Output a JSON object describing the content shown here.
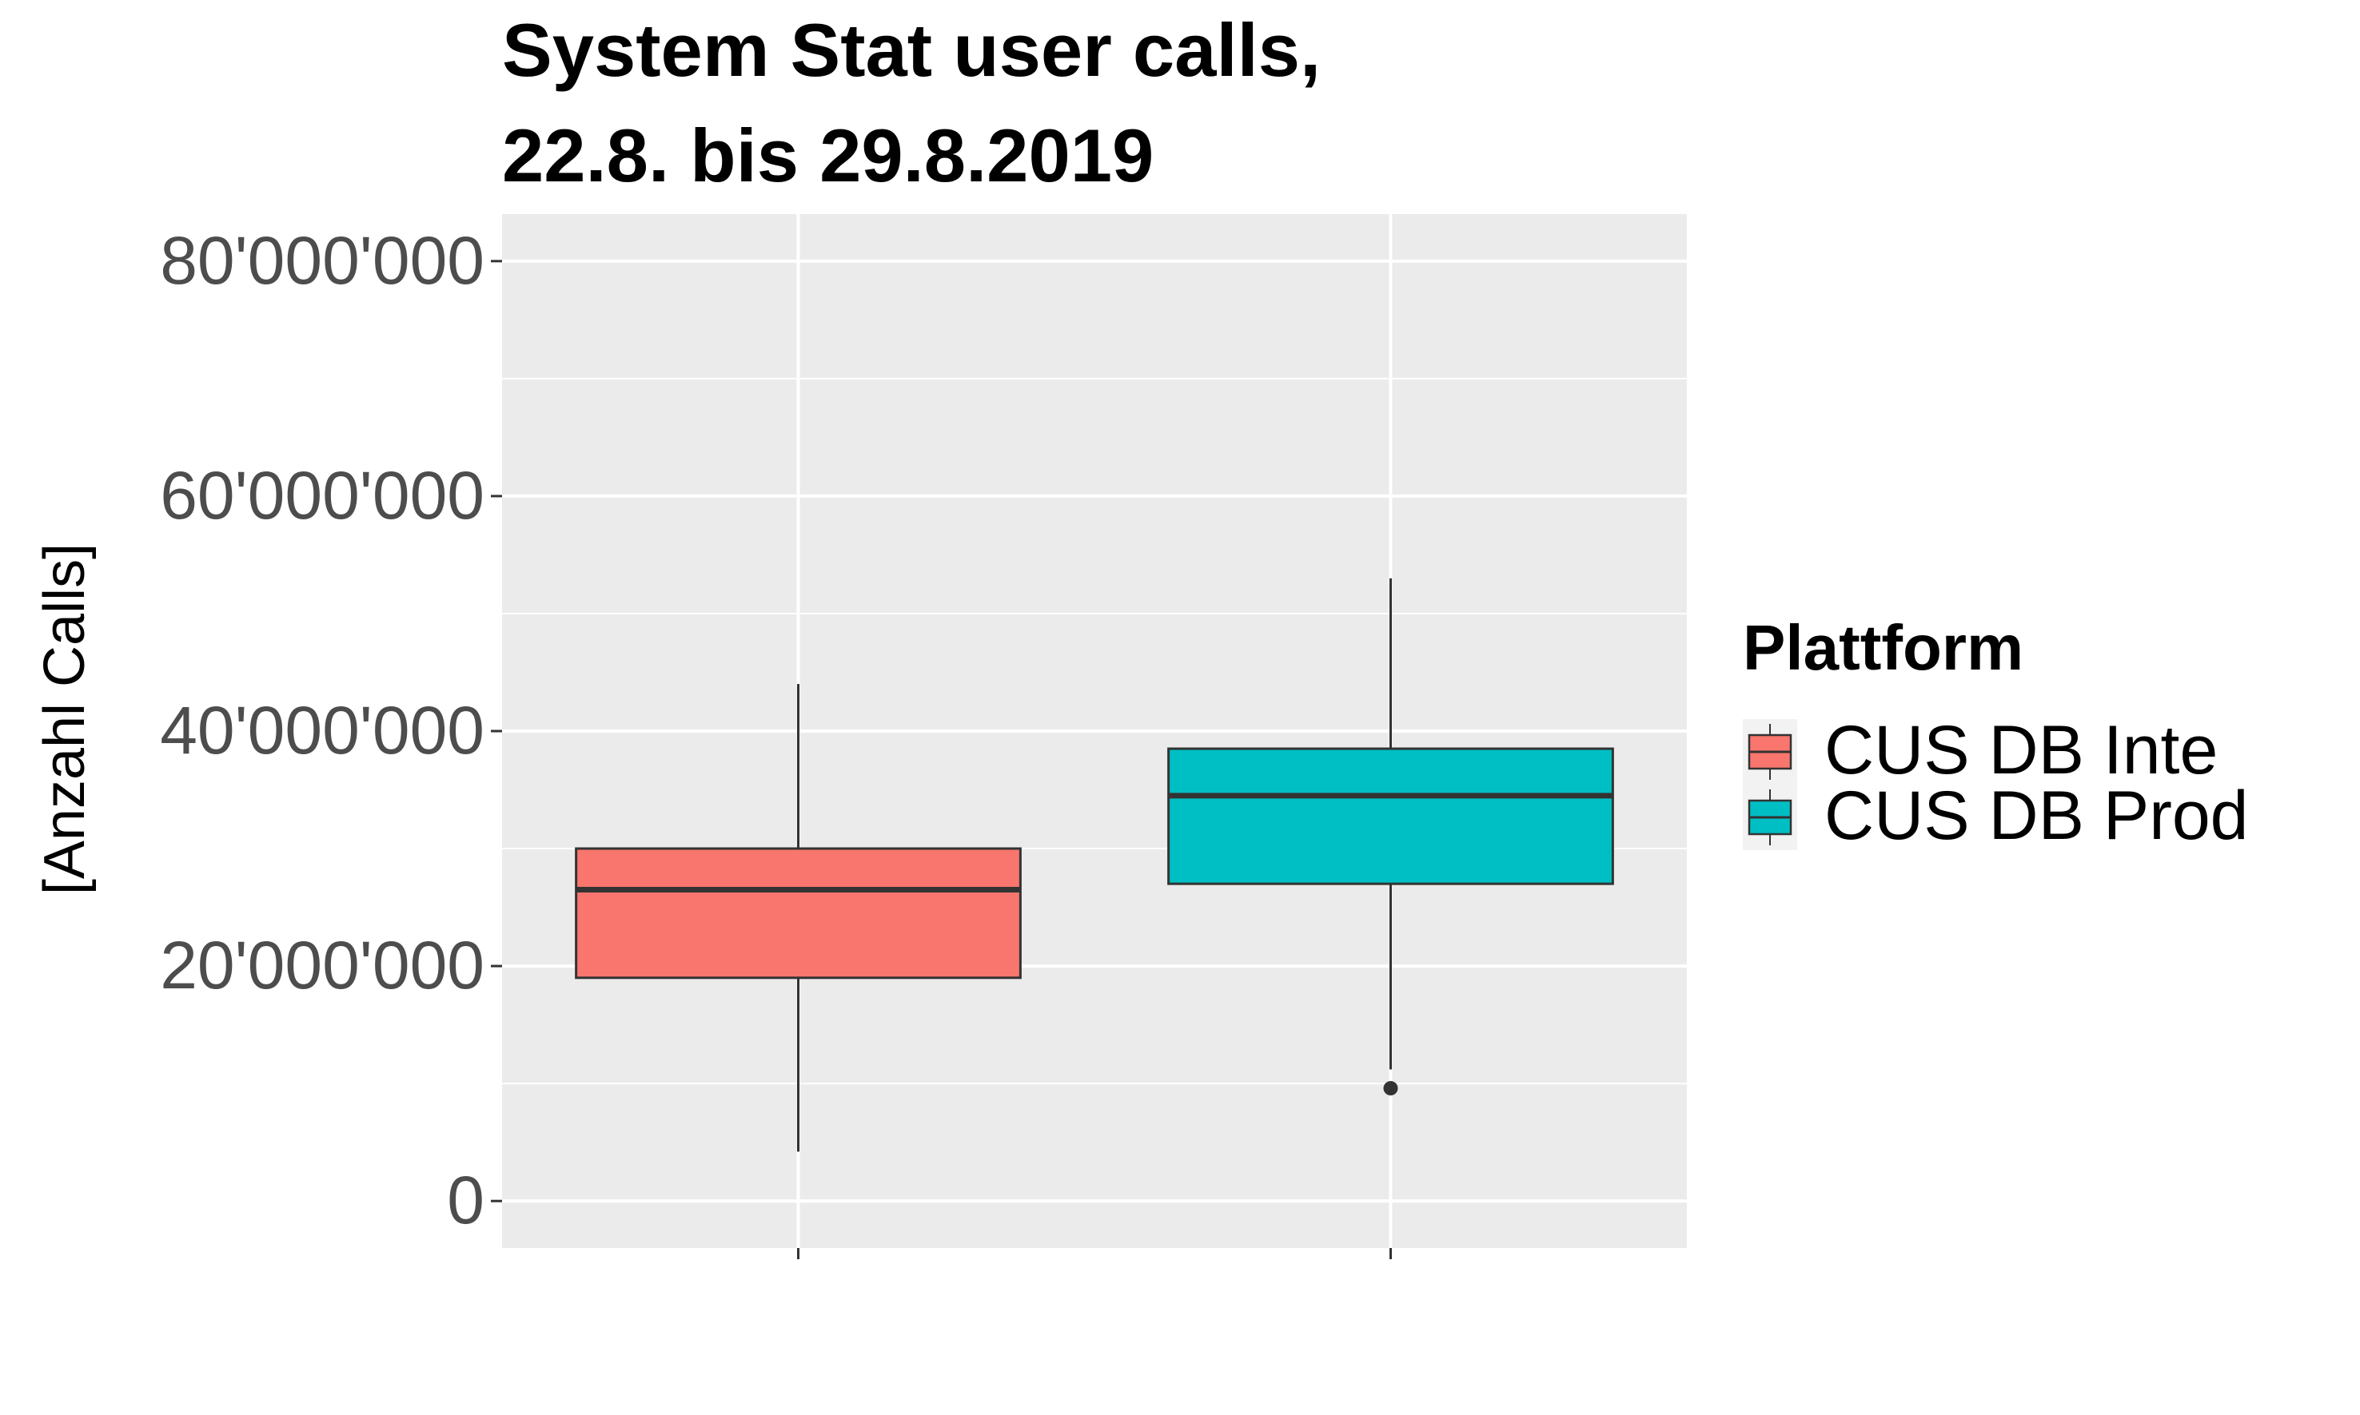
{
  "chart_data": {
    "type": "boxplot",
    "title": [
      "System Stat user calls,",
      "22.8. bis 29.8.2019"
    ],
    "xlabel": "",
    "ylabel": "[Anzahl Calls]",
    "ylim": [
      -4000000,
      84000000
    ],
    "yticks": [
      0,
      20000000,
      40000000,
      60000000,
      80000000
    ],
    "ytick_labels": [
      "0",
      "20'000'000",
      "40'000'000",
      "60'000'000",
      "80'000'000"
    ],
    "grid": true,
    "legend": {
      "title": "Plattform",
      "position": "right"
    },
    "series": [
      {
        "name": "CUS DB Inte",
        "color": "#F8766D",
        "whisker_low": 4200000,
        "q1": 19000000,
        "median": 26500000,
        "q3": 30000000,
        "whisker_high": 44000000,
        "outliers": []
      },
      {
        "name": "CUS DB Prod",
        "color": "#00BFC4",
        "whisker_low": 11200000,
        "q1": 27000000,
        "median": 34500000,
        "q3": 38500000,
        "whisker_high": 53000000,
        "outliers": [
          9600000
        ]
      }
    ]
  },
  "colors": {
    "panel": "#EBEBEB",
    "grid": "#FFFFFF",
    "outline": "#333333"
  }
}
